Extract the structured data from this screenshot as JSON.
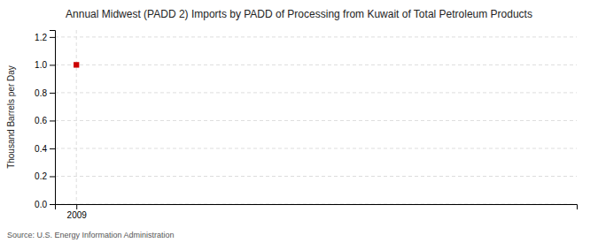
{
  "chart_data": {
    "type": "scatter",
    "title": "Annual Midwest (PADD 2) Imports by PADD of Processing from Kuwait of Total Petroleum Products",
    "ylabel": "Thousand Barrels per Day",
    "source": "Source: U.S. Energy Information Administration",
    "x": [
      2009
    ],
    "values": [
      1.0
    ],
    "color": "#cc0000",
    "marker": "square",
    "xlim": [
      2008.4,
      2023
    ],
    "xticks": [
      2009
    ],
    "ylim": [
      0.0,
      1.25
    ],
    "yticks": [
      {
        "value": 0.0,
        "label": "0.0"
      },
      0.2,
      0.4,
      0.6,
      0.8,
      {
        "value": 1.0,
        "label": "1.0"
      },
      1.2
    ],
    "grid": true
  }
}
